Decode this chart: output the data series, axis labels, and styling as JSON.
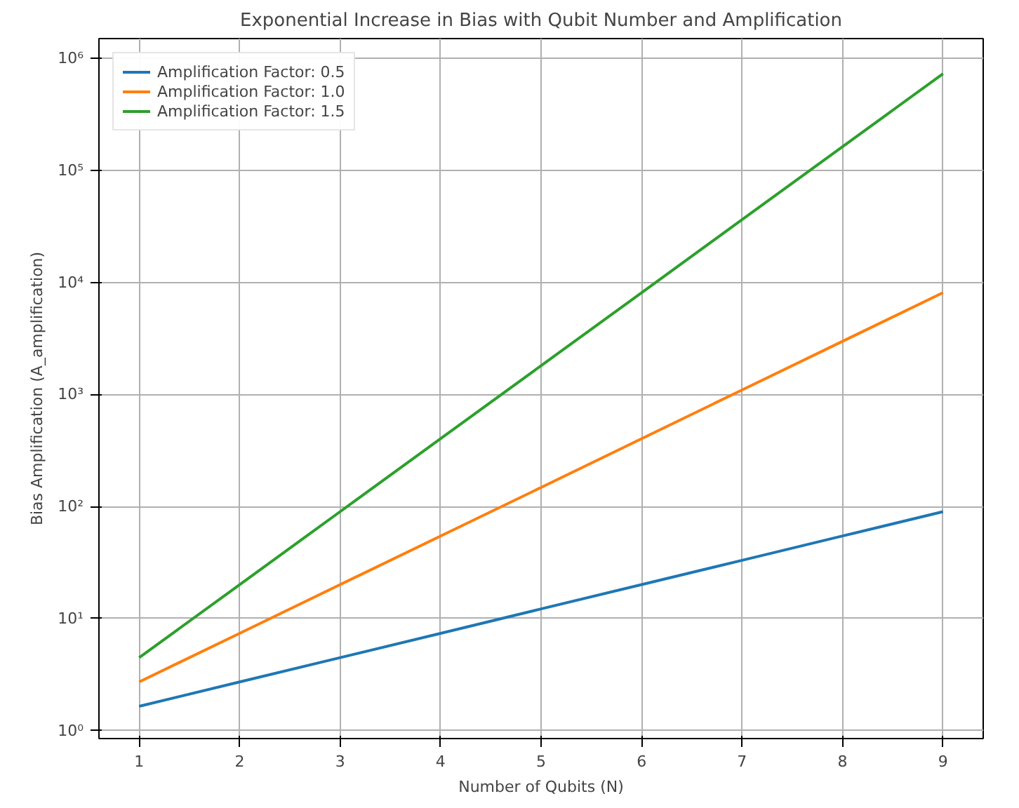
{
  "chart_data": {
    "type": "line",
    "title": "Exponential Increase in Bias with Qubit Number and Amplification",
    "xlabel": "Number of Qubits (N)",
    "ylabel": "Bias Amplification (A_amplification)",
    "x": [
      1,
      2,
      3,
      4,
      5,
      6,
      7,
      8,
      9
    ],
    "series": [
      {
        "name": "Amplification Factor: 0.5",
        "color": "#1f77b4",
        "values": [
          1.65,
          2.72,
          4.48,
          7.39,
          12.2,
          20.1,
          33.1,
          54.6,
          90.0
        ]
      },
      {
        "name": "Amplification Factor: 1.0",
        "color": "#ff7f0e",
        "values": [
          2.72,
          7.39,
          20.1,
          54.6,
          148,
          403,
          1097,
          2981,
          8103
        ]
      },
      {
        "name": "Amplification Factor: 1.5",
        "color": "#2ca02c",
        "values": [
          4.48,
          20.1,
          90.0,
          403,
          1808,
          8103,
          36316,
          162755,
          729416
        ]
      }
    ],
    "xlim": [
      0.6,
      9.4
    ],
    "xticks": [
      1,
      2,
      3,
      4,
      5,
      6,
      7,
      8,
      9
    ],
    "ylim": [
      0.85,
      1500000
    ],
    "yticks": [
      {
        "value": 1,
        "label": "10⁰"
      },
      {
        "value": 10,
        "label": "10¹"
      },
      {
        "value": 100,
        "label": "10²"
      },
      {
        "value": 1000,
        "label": "10³"
      },
      {
        "value": 10000,
        "label": "10⁴"
      },
      {
        "value": 100000,
        "label": "10⁵"
      },
      {
        "value": 1000000,
        "label": "10⁶"
      }
    ],
    "log": true,
    "grid": true,
    "legend": "top left",
    "marker": "none",
    "line_style": "solid"
  }
}
